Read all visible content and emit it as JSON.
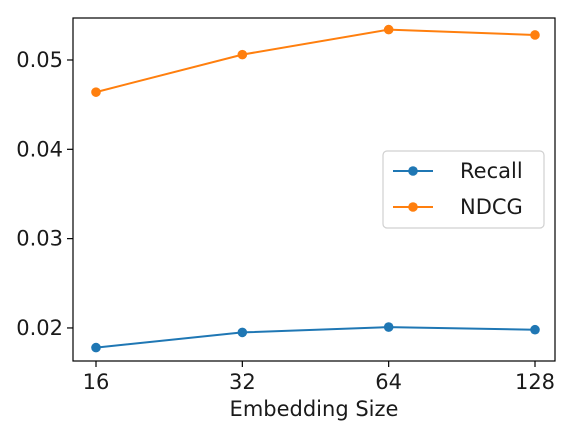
{
  "chart_data": {
    "type": "line",
    "title": "",
    "xlabel": "Embedding Size",
    "ylabel": "",
    "x": [
      16,
      32,
      64,
      128
    ],
    "x_scale": "log2",
    "xtick_labels": [
      "16",
      "32",
      "64",
      "128"
    ],
    "yticks": [
      0.02,
      0.03,
      0.04,
      0.05
    ],
    "ytick_labels": [
      "0.02",
      "0.03",
      "0.04",
      "0.05"
    ],
    "ylim": [
      0.0163,
      0.0547
    ],
    "grid": false,
    "legend_position": "center-right",
    "series": [
      {
        "name": "Recall",
        "color": "#1f77b4",
        "values": [
          0.0178,
          0.0195,
          0.0201,
          0.0198
        ]
      },
      {
        "name": "NDCG",
        "color": "#ff7f0e",
        "values": [
          0.0464,
          0.0506,
          0.0534,
          0.0528
        ]
      }
    ]
  }
}
